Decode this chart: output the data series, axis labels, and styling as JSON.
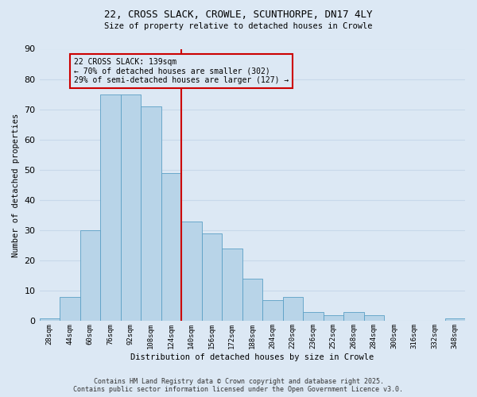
{
  "title1": "22, CROSS SLACK, CROWLE, SCUNTHORPE, DN17 4LY",
  "title2": "Size of property relative to detached houses in Crowle",
  "xlabel": "Distribution of detached houses by size in Crowle",
  "ylabel": "Number of detached properties",
  "categories": [
    "28sqm",
    "44sqm",
    "60sqm",
    "76sqm",
    "92sqm",
    "108sqm",
    "124sqm",
    "140sqm",
    "156sqm",
    "172sqm",
    "188sqm",
    "204sqm",
    "220sqm",
    "236sqm",
    "252sqm",
    "268sqm",
    "284sqm",
    "300sqm",
    "316sqm",
    "332sqm",
    "348sqm"
  ],
  "values": [
    1,
    8,
    30,
    75,
    75,
    71,
    49,
    33,
    29,
    24,
    14,
    7,
    8,
    3,
    2,
    3,
    2,
    0,
    0,
    0,
    1
  ],
  "bar_color": "#b8d4e8",
  "bar_edge_color": "#5a9fc5",
  "vline_x": 7,
  "vline_color": "#cc0000",
  "annotation_text": "22 CROSS SLACK: 139sqm\n← 70% of detached houses are smaller (302)\n29% of semi-detached houses are larger (127) →",
  "annotation_box_edge_color": "#cc0000",
  "ylim": [
    0,
    90
  ],
  "yticks": [
    0,
    10,
    20,
    30,
    40,
    50,
    60,
    70,
    80,
    90
  ],
  "grid_color": "#c8d8ea",
  "bg_color": "#dce8f4",
  "footer1": "Contains HM Land Registry data © Crown copyright and database right 2025.",
  "footer2": "Contains public sector information licensed under the Open Government Licence v3.0."
}
